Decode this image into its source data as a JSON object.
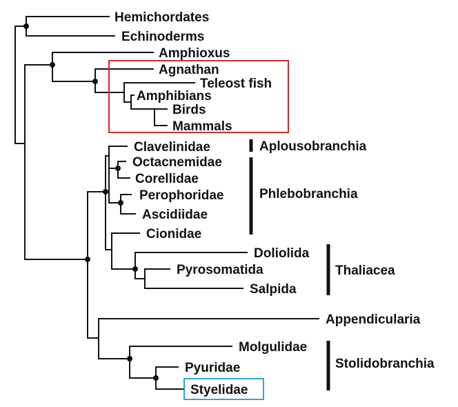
{
  "taxa": {
    "hemichordates": "Hemichordates",
    "echinoderms": "Echinoderms",
    "amphioxus": "Amphioxus",
    "agnathan": "Agnathan",
    "teleost_fish": "Teleost fish",
    "amphibians": "Amphibians",
    "birds": "Birds",
    "mammals": "Mammals",
    "clavelinidae": "Clavelinidae",
    "octacnemidae": "Octacnemidae",
    "corellidae": "Corellidae",
    "perophoridae": "Perophoridae",
    "ascidiidae": "Ascidiidae",
    "cionidae": "Cionidae",
    "doliolida": "Doliolida",
    "pyrosomatida": "Pyrosomatida",
    "salpida": "Salpida",
    "appendicularia": "Appendicularia",
    "molgulidae": "Molgulidae",
    "pyuridae": "Pyuridae",
    "styelidae": "Styelidae"
  },
  "groups": {
    "aplousobranchia": "Aplousobranchia",
    "phlebobranchia": "Phlebobranchia",
    "thaliacea": "Thaliacea",
    "stolidobranchia": "Stolidobranchia"
  },
  "highlights": {
    "vertebrates_box_color": "#d42a2a",
    "styelidae_box_color": "#2aa6d8"
  }
}
